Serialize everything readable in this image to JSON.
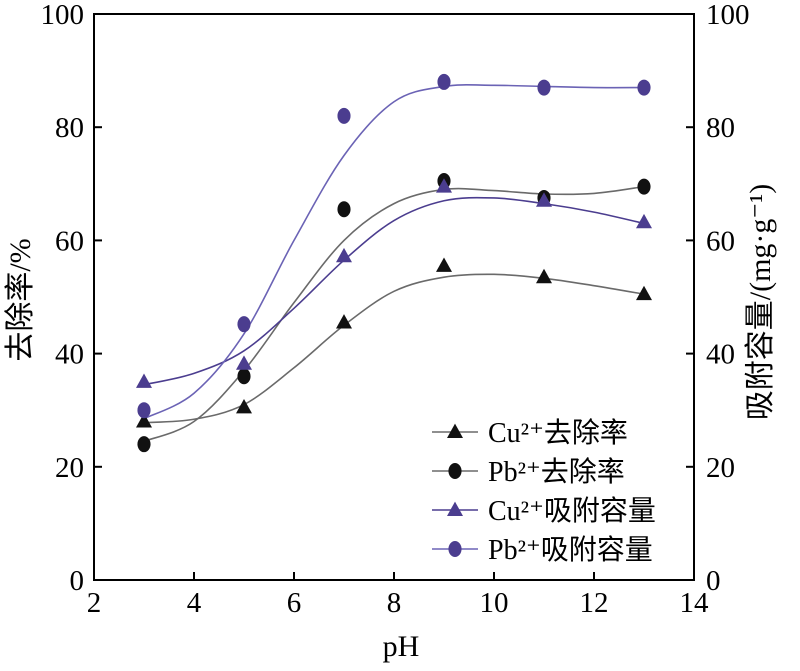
{
  "chart_data": {
    "type": "line",
    "title": "",
    "xlabel": "pH",
    "ylabel": "去除率/%",
    "y2label": "吸附容量/(mg·g⁻¹)",
    "xlim": [
      2,
      14
    ],
    "ylim": [
      0,
      100
    ],
    "y2lim": [
      0,
      100
    ],
    "xticks": [
      "2",
      "4",
      "6",
      "8",
      "10",
      "12",
      "14"
    ],
    "yticks": [
      "0",
      "20",
      "40",
      "60",
      "80",
      "100"
    ],
    "y2ticks": [
      "0",
      "20",
      "40",
      "60",
      "80",
      "100"
    ],
    "grid": false,
    "legend_position": "bottom-right",
    "series": [
      {
        "name": "Cu²⁺去除率",
        "axis": "left",
        "marker": "triangle",
        "marker_color": "#111111",
        "line_color": "#6a6a6a",
        "x": [
          3,
          5,
          7,
          9,
          11,
          13
        ],
        "y": [
          28,
          30.5,
          45.5,
          55.5,
          53.5,
          50.5
        ],
        "fit": [
          [
            3,
            27.8
          ],
          [
            4,
            28.4
          ],
          [
            5,
            31
          ],
          [
            6,
            37.5
          ],
          [
            7,
            45
          ],
          [
            8,
            51
          ],
          [
            9,
            53.5
          ],
          [
            10,
            54
          ],
          [
            11,
            53.3
          ],
          [
            12,
            52
          ],
          [
            13,
            50.5
          ]
        ]
      },
      {
        "name": "Pb²⁺去除率",
        "axis": "left",
        "marker": "circle",
        "marker_color": "#111111",
        "line_color": "#6a6a6a",
        "x": [
          3,
          5,
          7,
          9,
          11,
          13
        ],
        "y": [
          24,
          36,
          65.5,
          70.5,
          67.5,
          69.5
        ],
        "fit": [
          [
            3,
            24.5
          ],
          [
            4,
            28
          ],
          [
            5,
            37
          ],
          [
            6,
            49
          ],
          [
            7,
            60
          ],
          [
            8,
            66.5
          ],
          [
            9,
            69
          ],
          [
            10,
            68.8
          ],
          [
            11,
            68.2
          ],
          [
            12,
            68.3
          ],
          [
            13,
            69.5
          ]
        ]
      },
      {
        "name": "Cu²⁺吸附容量",
        "axis": "right",
        "marker": "triangle",
        "marker_color": "#4b3d8f",
        "line_color": "#4b3d8f",
        "x": [
          3,
          5,
          7,
          9,
          11,
          13
        ],
        "y": [
          35,
          38.2,
          57.2,
          69.5,
          67,
          63.2
        ],
        "fit": [
          [
            3,
            34.5
          ],
          [
            4,
            36.5
          ],
          [
            5,
            40.5
          ],
          [
            6,
            48
          ],
          [
            7,
            56.5
          ],
          [
            8,
            63.5
          ],
          [
            9,
            67
          ],
          [
            10,
            67.5
          ],
          [
            11,
            66.5
          ],
          [
            12,
            65
          ],
          [
            13,
            63
          ]
        ]
      },
      {
        "name": "Pb²⁺吸附容量",
        "axis": "right",
        "marker": "circle",
        "marker_color": "#4b3d8f",
        "line_color": "#6b63b5",
        "x": [
          3,
          5,
          7,
          9,
          11,
          13
        ],
        "y": [
          30,
          45.2,
          82,
          88,
          87,
          87
        ],
        "fit": [
          [
            3,
            28.5
          ],
          [
            4,
            33
          ],
          [
            5,
            43.5
          ],
          [
            6,
            60
          ],
          [
            7,
            75
          ],
          [
            8,
            84.5
          ],
          [
            9,
            87.2
          ],
          [
            10,
            87.4
          ],
          [
            11,
            87.2
          ],
          [
            12,
            87
          ],
          [
            13,
            87
          ]
        ]
      }
    ]
  }
}
